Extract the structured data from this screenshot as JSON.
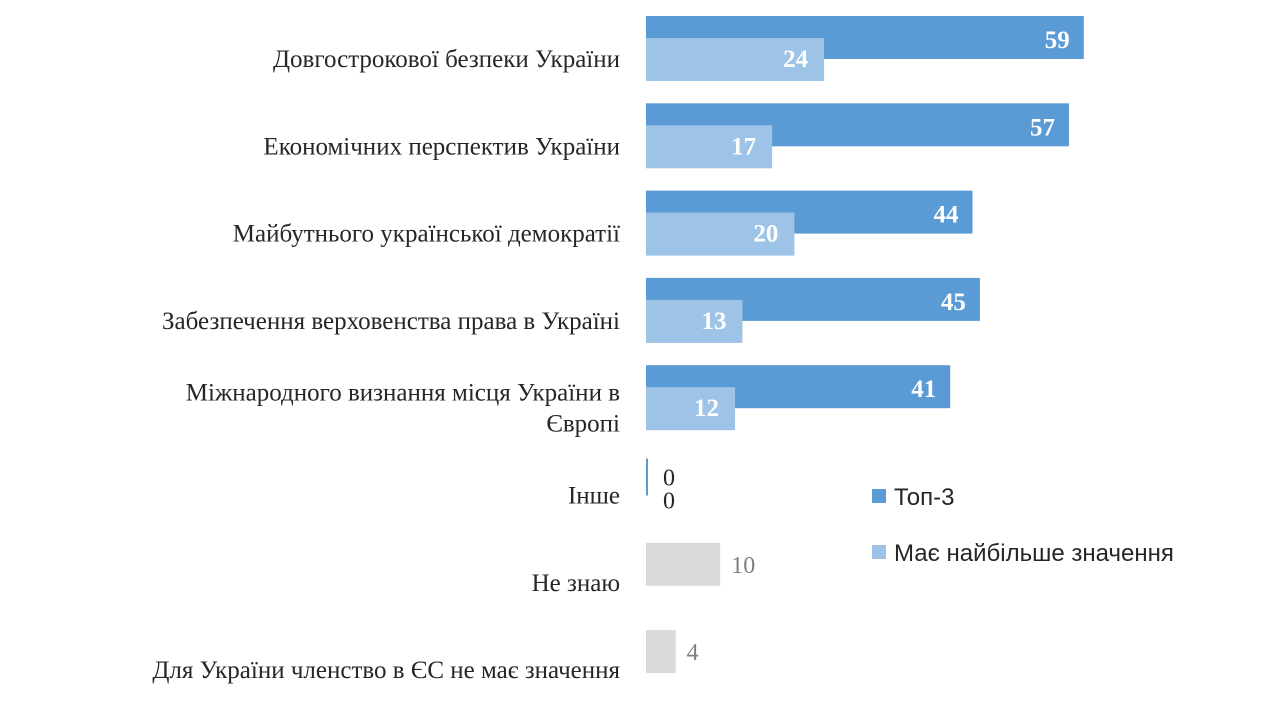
{
  "chart_data": {
    "type": "bar",
    "orientation": "horizontal",
    "categories": [
      "Довгострокової безпеки України",
      "Економічних перспектив України",
      "Майбутнього української демократії",
      "Забезпечення верховенства права в Україні",
      "Міжнародного визнання місця України в Європі",
      "Інше",
      "Не знаю",
      "Для України членство в ЄС не має значення"
    ],
    "series": [
      {
        "name": "Топ-3",
        "color": "#5b9bd5",
        "values": [
          59,
          57,
          44,
          45,
          41,
          0,
          null,
          null
        ]
      },
      {
        "name": "Має найбільше значення",
        "color": "#9dc3e6",
        "values": [
          24,
          17,
          20,
          13,
          12,
          0,
          null,
          null
        ]
      }
    ],
    "single_values": [
      null,
      null,
      null,
      null,
      null,
      null,
      10,
      4
    ],
    "single_color": "#d9d9d9",
    "xlim": [
      0,
      70
    ],
    "legend_position": "right",
    "grid": false
  }
}
